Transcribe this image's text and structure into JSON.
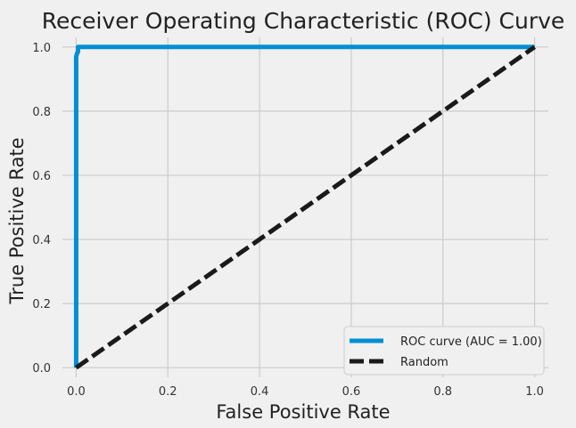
{
  "chart_data": {
    "type": "line",
    "title": "Receiver Operating Characteristic (ROC) Curve",
    "xlabel": "False Positive Rate",
    "ylabel": "True Positive Rate",
    "xlim": [
      -0.03,
      1.03
    ],
    "ylim": [
      -0.03,
      1.03
    ],
    "xticks": [
      0.0,
      0.2,
      0.4,
      0.6,
      0.8,
      1.0
    ],
    "yticks": [
      0.0,
      0.2,
      0.4,
      0.6,
      0.8,
      1.0
    ],
    "tick_labels_x": [
      "0.0",
      "0.2",
      "0.4",
      "0.6",
      "0.8",
      "1.0"
    ],
    "tick_labels_y": [
      "0.0",
      "0.2",
      "0.4",
      "0.6",
      "0.8",
      "1.0"
    ],
    "grid": true,
    "legend_position": "lower-right",
    "series": [
      {
        "name": "ROC curve (AUC = 1.00)",
        "color": "#008fd5",
        "style": "solid",
        "x": [
          0.0,
          0.0,
          0.0,
          0.002,
          0.004,
          0.004,
          1.0
        ],
        "y": [
          0.0,
          0.95,
          0.97,
          0.98,
          0.985,
          1.0,
          1.0
        ]
      },
      {
        "name": "Random",
        "color": "#1a1a1a",
        "style": "dashed",
        "x": [
          0.0,
          1.0
        ],
        "y": [
          0.0,
          1.0
        ]
      }
    ]
  }
}
